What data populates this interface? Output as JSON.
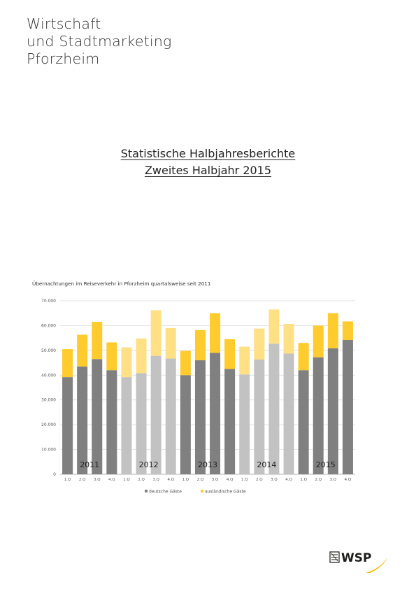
{
  "header": {
    "org_lines": [
      "Wirtschaft",
      "und Stadtmarketing",
      "Pforzheim"
    ]
  },
  "report": {
    "title_line1": "Statistische Halbjahresberichte",
    "title_line2": "Zweites Halbjahr 2015"
  },
  "chart_data": {
    "type": "bar",
    "stacked": true,
    "title": "Übernachtungen im Reiseverkehr in Pforzheim quartalsweise seit 2011",
    "categories": [
      "1.Q",
      "2.Q",
      "3.Q",
      "4.Q",
      "1.Q",
      "2.Q",
      "3.Q",
      "4.Q",
      "1.Q",
      "2.Q",
      "3.Q",
      "4.Q",
      "1.Q",
      "2.Q",
      "3.Q",
      "4.Q",
      "1.Q",
      "2.Q",
      "3.Q",
      "4.Q"
    ],
    "year_labels": [
      "2011",
      "2012",
      "2013",
      "2014",
      "2015"
    ],
    "series": [
      {
        "name": "deutsche Gäste",
        "values": [
          39200,
          43500,
          46500,
          42000,
          39200,
          40800,
          47800,
          46700,
          40000,
          46000,
          49000,
          42500,
          40300,
          46300,
          52700,
          48700,
          42000,
          47200,
          50800,
          54200
        ]
      },
      {
        "name": "ausländische Gäste",
        "values": [
          11300,
          12800,
          15000,
          11200,
          12000,
          14000,
          18400,
          12300,
          9800,
          12200,
          16000,
          12000,
          11200,
          12500,
          13800,
          12000,
          11000,
          12800,
          14200,
          7500
        ]
      }
    ],
    "ylim": [
      0,
      70000
    ],
    "yticks": [
      0,
      10000,
      20000,
      30000,
      40000,
      50000,
      60000,
      70000
    ],
    "ytick_labels": [
      "0",
      "10.000",
      "20.000",
      "30.000",
      "40.000",
      "50.000",
      "60.000",
      "70.000"
    ],
    "grid": true,
    "legend_position": "bottom",
    "colors": {
      "odd_year_base": "#808080",
      "odd_year_top": "#FFCB2D",
      "even_year_base": "#C2C2C2",
      "even_year_top": "#FFE085",
      "legend_base": "#808080",
      "legend_top": "#FFCB2D"
    }
  },
  "logo": {
    "text": "WSP",
    "accent_color": "#F5B800"
  }
}
